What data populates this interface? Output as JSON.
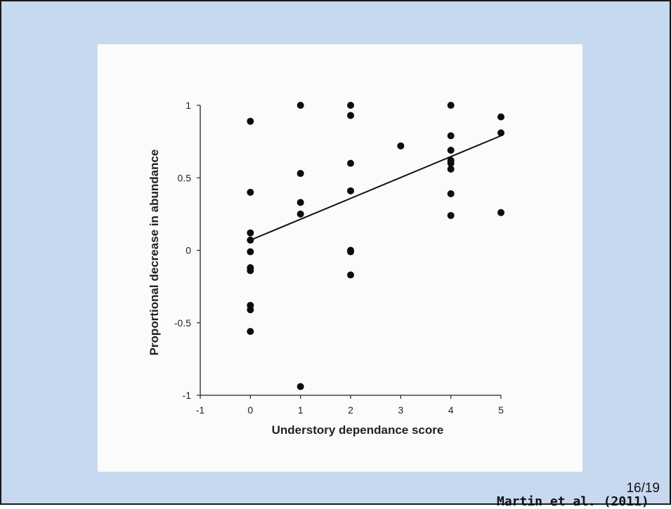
{
  "page": {
    "number": "16/19"
  },
  "citation": "Martin et al. (2011)",
  "chart_data": {
    "type": "scatter",
    "title": "",
    "xlabel": "Understory dependance score",
    "ylabel": "Proportional decrease in abundance",
    "xlim": [
      -1,
      5
    ],
    "ylim": [
      -1,
      1
    ],
    "xticks": [
      "-1",
      "0",
      "1",
      "2",
      "3",
      "4",
      "5"
    ],
    "yticks": [
      "1",
      "0.5",
      "0",
      "-0.5",
      "-1"
    ],
    "grid": false,
    "legend": "none",
    "points": [
      {
        "x": 0,
        "y": 0.89
      },
      {
        "x": 0,
        "y": 0.4
      },
      {
        "x": 0,
        "y": 0.12
      },
      {
        "x": 0,
        "y": 0.07
      },
      {
        "x": 0,
        "y": -0.01
      },
      {
        "x": 0,
        "y": -0.12
      },
      {
        "x": 0,
        "y": -0.14
      },
      {
        "x": 0,
        "y": -0.38
      },
      {
        "x": 0,
        "y": -0.41
      },
      {
        "x": 0,
        "y": -0.56
      },
      {
        "x": 1,
        "y": 1.0
      },
      {
        "x": 1,
        "y": 0.53
      },
      {
        "x": 1,
        "y": 0.33
      },
      {
        "x": 1,
        "y": 0.25
      },
      {
        "x": 1,
        "y": -0.94
      },
      {
        "x": 2,
        "y": 1.0
      },
      {
        "x": 2,
        "y": 0.93
      },
      {
        "x": 2,
        "y": 0.6
      },
      {
        "x": 2,
        "y": 0.41
      },
      {
        "x": 2,
        "y": 0.0
      },
      {
        "x": 2,
        "y": -0.01
      },
      {
        "x": 2,
        "y": -0.17
      },
      {
        "x": 3,
        "y": 0.72
      },
      {
        "x": 4,
        "y": 1.0
      },
      {
        "x": 4,
        "y": 0.79
      },
      {
        "x": 4,
        "y": 0.69
      },
      {
        "x": 4,
        "y": 0.62
      },
      {
        "x": 4,
        "y": 0.6
      },
      {
        "x": 4,
        "y": 0.56
      },
      {
        "x": 4,
        "y": 0.39
      },
      {
        "x": 4,
        "y": 0.24
      },
      {
        "x": 5,
        "y": 0.92
      },
      {
        "x": 5,
        "y": 0.81
      },
      {
        "x": 5,
        "y": 0.26
      }
    ],
    "trendline": {
      "x": [
        0,
        5
      ],
      "y": [
        0.07,
        0.79
      ]
    }
  }
}
